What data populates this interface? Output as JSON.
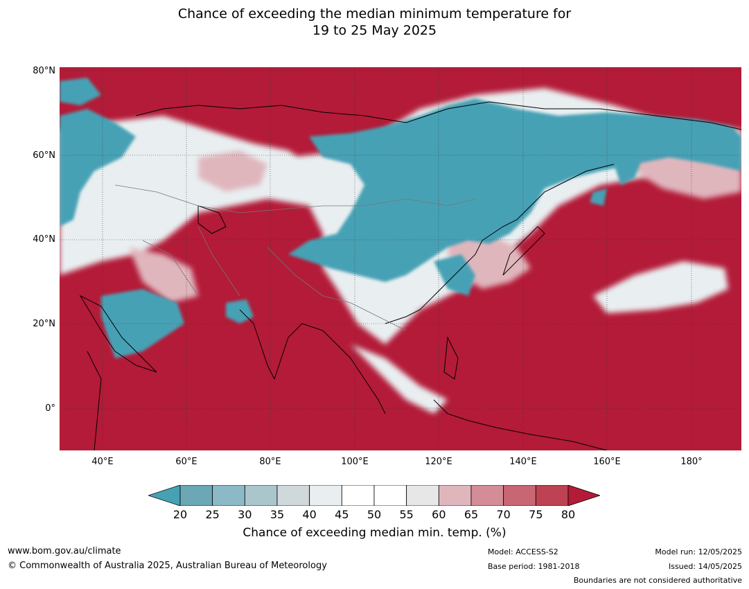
{
  "title": {
    "line1": "Chance of exceeding the median minimum temperature for",
    "line2": "19 to 25 May 2025"
  },
  "map": {
    "lat_labels": [
      "80°N",
      "60°N",
      "40°N",
      "20°N",
      "0°"
    ],
    "lon_labels": [
      "40°E",
      "60°E",
      "80°E",
      "100°E",
      "120°E",
      "140°E",
      "160°E",
      "180°"
    ],
    "background_color": "#b31b38"
  },
  "colorbar": {
    "ticks": [
      "20",
      "25",
      "30",
      "35",
      "40",
      "45",
      "50",
      "55",
      "60",
      "65",
      "70",
      "75",
      "80"
    ],
    "colors": [
      "#6ba7b5",
      "#8bbac6",
      "#abc5cc",
      "#d1d8db",
      "#e9eff1",
      "#ffffff",
      "#ffffff",
      "#e7e7e7",
      "#e0b6bd",
      "#d48c97",
      "#c86674",
      "#bd4352"
    ],
    "under_color": "#46a1b5",
    "over_color": "#b31b38",
    "label": "Chance of exceeding median min. temp. (%)"
  },
  "footer": {
    "website": "www.bom.gov.au/climate",
    "copyright": "© Commonwealth of Australia 2025, Australian Bureau of Meteorology",
    "model": "Model: ACCESS-S2",
    "base_period": "Base period: 1981-2018",
    "model_run": "Model run: 12/05/2025",
    "issued": "Issued: 14/05/2025",
    "disclaimer": "Boundaries are not considered authoritative"
  }
}
